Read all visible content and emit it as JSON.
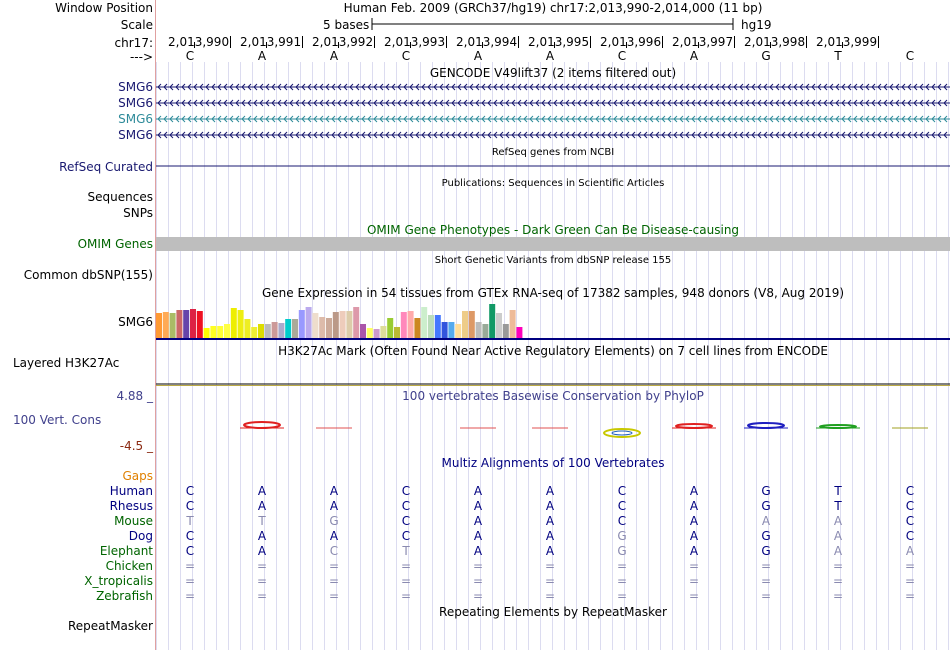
{
  "header": {
    "window_position_label": "Window Position",
    "window_position_value": "Human Feb. 2009 (GRCh37/hg19)   chr17:2,013,990-2,014,000 (11 bp)",
    "scale_label": "Scale",
    "scale_text": "5 bases",
    "scale_assembly": "hg19",
    "chrom_label": "chr17:",
    "strand_label": "--->",
    "positions": [
      "2,013,990",
      "2,013,991",
      "2,013,992",
      "2,013,993",
      "2,013,994",
      "2,013,995",
      "2,013,996",
      "2,013,997",
      "2,013,998",
      "2,013,999"
    ],
    "bases": [
      "C",
      "A",
      "A",
      "C",
      "A",
      "A",
      "C",
      "A",
      "G",
      "T",
      "C"
    ]
  },
  "tracks": {
    "gencode_title": "GENCODE V49lift37 (2 items filtered out)",
    "gencode_genes": [
      {
        "name": "SMG6",
        "color": "#191970"
      },
      {
        "name": "SMG6",
        "color": "#191970"
      },
      {
        "name": "SMG6",
        "color": "#2e8b9a"
      },
      {
        "name": "SMG6",
        "color": "#191970"
      }
    ],
    "refseq_title": "RefSeq genes from NCBI",
    "refseq_label": "RefSeq Curated",
    "publications_title": "Publications: Sequences in Scientific Articles",
    "sequences_label": "Sequences",
    "snps_label": "SNPs",
    "omim_title": "OMIM Gene Phenotypes - Dark Green Can Be Disease-causing",
    "omim_label": "OMIM Genes",
    "dbsnp_title": "Short Genetic Variants from dbSNP release 155",
    "dbsnp_label": "Common dbSNP(155)",
    "gtex_title": "Gene Expression in 54 tissues from GTEx RNA-seq of 17382 samples, 948 donors (V8, Aug 2019)",
    "gtex_label": "SMG6",
    "h3k27ac_title": "H3K27Ac Mark (Often Found Near Active Regulatory Elements) on 7 cell lines from ENCODE",
    "h3k27ac_label": "Layered H3K27Ac",
    "phylop_title": "100 vertebrates Basewise Conservation by PhyloP",
    "phylop_label": "100 Vert. Cons",
    "phylop_max": "4.88 _",
    "phylop_min": "-4.5 _",
    "multiz_title": "Multiz Alignments of 100 Vertebrates",
    "gaps_label": "Gaps",
    "repeat_title": "Repeating Elements by RepeatMasker",
    "repeat_label": "RepeatMasker"
  },
  "species": [
    {
      "name": "Human",
      "color": "#000080",
      "bases": [
        "C",
        "A",
        "A",
        "C",
        "A",
        "A",
        "C",
        "A",
        "G",
        "T",
        "C"
      ],
      "dim": [
        0,
        0,
        0,
        0,
        0,
        0,
        0,
        0,
        0,
        0,
        0
      ]
    },
    {
      "name": "Rhesus",
      "color": "#000080",
      "bases": [
        "C",
        "A",
        "A",
        "C",
        "A",
        "A",
        "C",
        "A",
        "G",
        "T",
        "C"
      ],
      "dim": [
        0,
        0,
        0,
        0,
        0,
        0,
        0,
        0,
        0,
        0,
        0
      ]
    },
    {
      "name": "Mouse",
      "color": "#006400",
      "bases": [
        "T",
        "T",
        "G",
        "C",
        "A",
        "A",
        "C",
        "A",
        "A",
        "A",
        "C"
      ],
      "dim": [
        1,
        1,
        1,
        0,
        0,
        0,
        0,
        0,
        1,
        1,
        0
      ]
    },
    {
      "name": "Dog",
      "color": "#000080",
      "bases": [
        "C",
        "A",
        "A",
        "C",
        "A",
        "A",
        "G",
        "A",
        "G",
        "A",
        "C"
      ],
      "dim": [
        0,
        0,
        0,
        0,
        0,
        0,
        1,
        0,
        0,
        1,
        0
      ]
    },
    {
      "name": "Elephant",
      "color": "#006400",
      "bases": [
        "C",
        "A",
        "C",
        "T",
        "A",
        "A",
        "G",
        "A",
        "G",
        "A",
        "A"
      ],
      "dim": [
        0,
        0,
        1,
        1,
        0,
        0,
        1,
        0,
        0,
        1,
        1
      ]
    },
    {
      "name": "Chicken",
      "color": "#006400",
      "bases": [
        "=",
        "=",
        "=",
        "=",
        "=",
        "=",
        "=",
        "=",
        "=",
        "=",
        "="
      ],
      "dim": [
        1,
        1,
        1,
        1,
        1,
        1,
        1,
        1,
        1,
        1,
        1
      ]
    },
    {
      "name": "X_tropicalis",
      "color": "#006400",
      "bases": [
        "=",
        "=",
        "=",
        "=",
        "=",
        "=",
        "=",
        "=",
        "=",
        "=",
        "="
      ],
      "dim": [
        1,
        1,
        1,
        1,
        1,
        1,
        1,
        1,
        1,
        1,
        1
      ]
    },
    {
      "name": "Zebrafish",
      "color": "#006400",
      "bases": [
        "=",
        "=",
        "=",
        "=",
        "=",
        "=",
        "=",
        "=",
        "=",
        "=",
        "="
      ],
      "dim": [
        1,
        1,
        1,
        1,
        1,
        1,
        1,
        1,
        1,
        1,
        1
      ]
    }
  ],
  "colors": {
    "gene_dark": "#191970",
    "gene_teal": "#2e8b9a",
    "omim_bar": "#bebebe",
    "omim_label": "#006400",
    "phylop_text": "#40408c",
    "gaps_label": "#e08000",
    "dim_base": "#8a8ab0"
  },
  "gtex_values": [
    0.55,
    0.57,
    0.55,
    0.63,
    0.63,
    0.65,
    0.6,
    0.22,
    0.27,
    0.27,
    0.32,
    0.67,
    0.62,
    0.42,
    0.25,
    0.32,
    0.3,
    0.36,
    0.33,
    0.42,
    0.43,
    0.62,
    0.68,
    0.55,
    0.47,
    0.45,
    0.57,
    0.6,
    0.6,
    0.7,
    0.32,
    0.23,
    0.2,
    0.27,
    0.45,
    0.25,
    0.57,
    0.6,
    0.45,
    0.7,
    0.5,
    0.5,
    0.35,
    0.35,
    0.32,
    0.6,
    0.6,
    0.35,
    0.3,
    0.75,
    0.55,
    0.3,
    0.62,
    0.25
  ],
  "gtex_colors": [
    "#ff9933",
    "#ffaa55",
    "#aabb66",
    "#cc6666",
    "#6644aa",
    "#dd2244",
    "#ee1122",
    "#ffff00",
    "#ffff22",
    "#ffff33",
    "#ffff44",
    "#eeee00",
    "#eeee11",
    "#eeee22",
    "#eeee33",
    "#dddd00",
    "#bbbbbb",
    "#cc9999",
    "#aaaacc",
    "#00cccc",
    "#aaaa99",
    "#9999ff",
    "#bbaaee",
    "#eeddcc",
    "#ddbbaa",
    "#ccaa99",
    "#bb9988",
    "#eeccbb",
    "#ddccaa",
    "#dd99aa",
    "#aa55aa",
    "#ffff66",
    "#cc99cc",
    "#dddd99",
    "#99cc33",
    "#bbbb33",
    "#ff88bb",
    "#ffaaaa",
    "#cc8822",
    "#cceecc",
    "#bbddbb",
    "#4477ff",
    "#3355dd",
    "#55aaee",
    "#ffdd99",
    "#eecc88",
    "#dd9966",
    "#bbbbbb",
    "#99aa99",
    "#119966",
    "#cccccc",
    "#999999",
    "#eebb99",
    "#ff00bb"
  ]
}
